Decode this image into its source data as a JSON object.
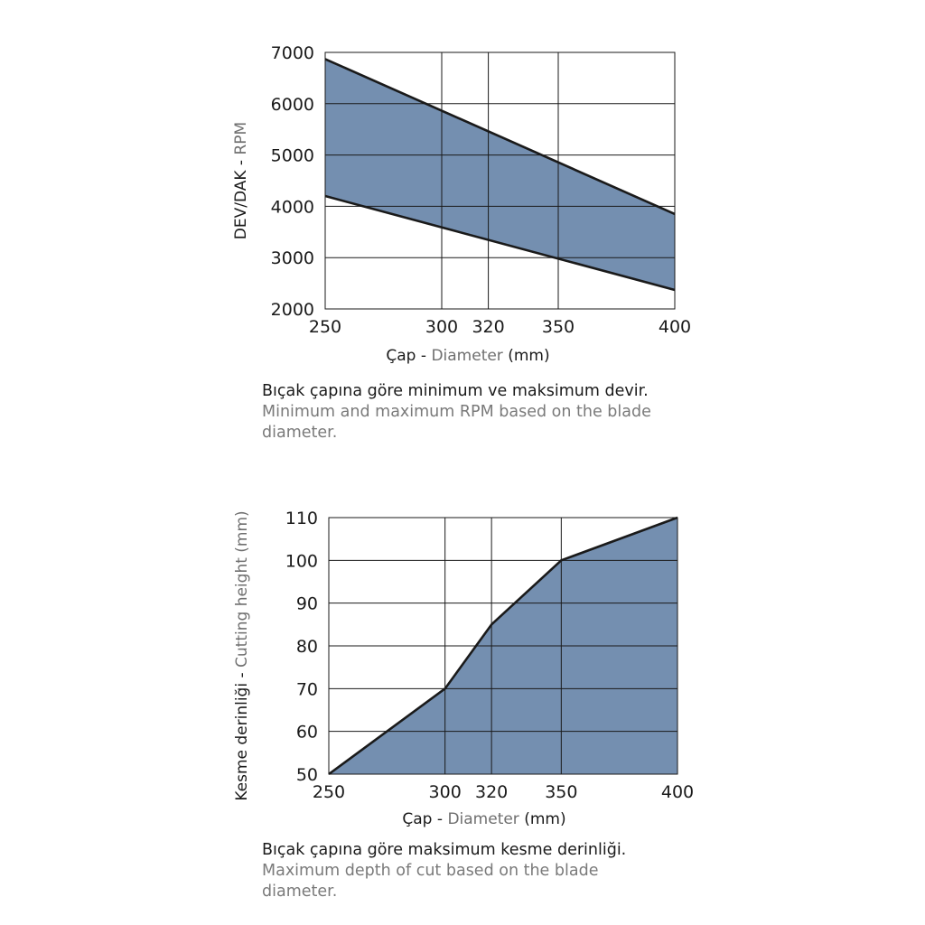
{
  "charts": {
    "rpm": {
      "ylabel_tr": "DEV/DAK",
      "ylabel_sep": " - ",
      "ylabel_en": "RPM",
      "xlabel_tr": "Çap",
      "xlabel_sep": " - ",
      "xlabel_en": "Diameter",
      "xlabel_unit": " (mm)",
      "caption_tr": "Bıçak çapına göre minimum ve maksimum devir.",
      "caption_en": "Minimum and maximum RPM based on the blade diameter."
    },
    "depth": {
      "ylabel_tr": "Kesme derinliği",
      "ylabel_sep": " - ",
      "ylabel_en": "Cutting height (mm)",
      "xlabel_tr": "Çap",
      "xlabel_sep": " - ",
      "xlabel_en": "Diameter",
      "xlabel_unit": " (mm)",
      "caption_tr": "Bıçak çapına göre maksimum kesme derinliği.",
      "caption_en": "Maximum depth of cut based on the blade diameter."
    }
  },
  "colors": {
    "fill": "#748fb0",
    "line": "#1a1a1a",
    "grid": "#1a1a1a"
  },
  "chart_data": [
    {
      "type": "area",
      "x_ticks": [
        250,
        300,
        320,
        350,
        400
      ],
      "y_ticks": [
        2000,
        3000,
        4000,
        5000,
        6000,
        7000
      ],
      "xlim": [
        250,
        400
      ],
      "ylim": [
        2000,
        7000
      ],
      "grid": true,
      "series": [
        {
          "x": [
            250,
            400
          ],
          "values": [
            6870,
            3850
          ]
        },
        {
          "x": [
            250,
            400
          ],
          "values": [
            4200,
            2370
          ]
        }
      ]
    },
    {
      "type": "area",
      "x_ticks": [
        250,
        300,
        320,
        350,
        400
      ],
      "y_ticks": [
        50,
        60,
        70,
        80,
        90,
        100,
        110
      ],
      "xlim": [
        250,
        400
      ],
      "ylim": [
        50,
        110
      ],
      "grid": true,
      "series": [
        {
          "x": [
            250,
            300,
            320,
            350,
            400
          ],
          "values": [
            50,
            70,
            85,
            100,
            110
          ]
        }
      ]
    }
  ]
}
